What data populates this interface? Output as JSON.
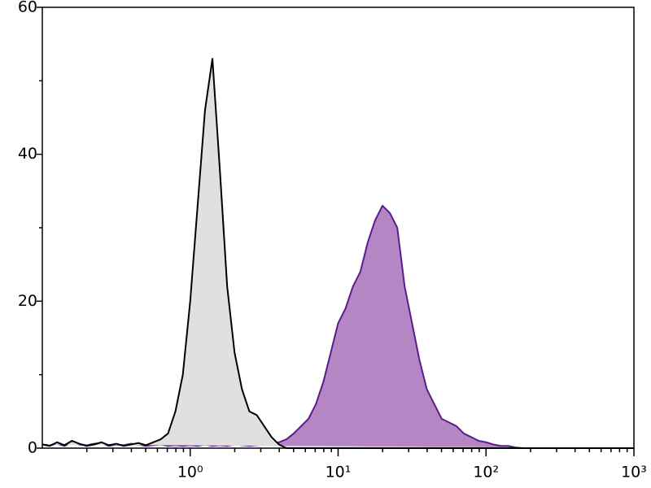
{
  "chart_data": {
    "type": "area",
    "x": [
      0.1,
      0.1122,
      0.1259,
      0.1413,
      0.1585,
      0.1778,
      0.1995,
      0.2239,
      0.2512,
      0.2818,
      0.3162,
      0.3548,
      0.3981,
      0.4467,
      0.5012,
      0.5623,
      0.631,
      0.7079,
      0.7943,
      0.8913,
      1,
      1.122,
      1.259,
      1.413,
      1.585,
      1.778,
      1.995,
      2.239,
      2.512,
      2.818,
      3.162,
      3.548,
      3.981,
      4.467,
      5.012,
      5.623,
      6.31,
      7.079,
      7.943,
      8.913,
      10,
      11.22,
      12.59,
      14.13,
      15.85,
      17.78,
      19.95,
      22.39,
      25.12,
      28.18,
      31.62,
      35.48,
      39.81,
      44.67,
      50.12,
      56.23,
      63.1,
      70.79,
      79.43,
      89.13,
      100,
      112.2,
      125.9,
      141.3,
      158.5,
      177.8,
      199.5,
      223.9,
      251.2,
      281.8,
      316.2,
      354.8,
      398.1,
      446.7,
      501.2,
      562.3,
      631,
      707.9,
      794.3,
      891.3,
      1000
    ],
    "series": [
      {
        "color": "#5b1c8c",
        "fill": "#b486c4",
        "values": [
          0.5,
          0.4,
          0.6,
          0.3,
          0.8,
          0.5,
          0.4,
          0.6,
          0.7,
          0.3,
          0.5,
          0.4,
          0.6,
          0.5,
          0.3,
          0.4,
          0.5,
          0.3,
          0.4,
          0.3,
          0.4,
          0.3,
          0.5,
          0.3,
          0.4,
          0.3,
          0.5,
          0.4,
          0.3,
          0.4,
          0.5,
          0.6,
          0.8,
          1.2,
          2,
          3,
          4,
          6,
          9,
          13,
          17,
          19,
          22,
          24,
          28,
          31,
          33,
          32,
          30,
          22,
          17,
          12,
          8,
          6,
          4,
          3.5,
          3,
          2,
          1.5,
          1,
          0.8,
          0.5,
          0.3,
          0.3,
          0.1,
          0,
          0,
          0,
          0,
          0,
          0,
          0,
          0,
          0,
          0,
          0,
          0,
          0,
          0,
          0,
          0
        ]
      },
      {
        "color": "#000000",
        "fill": "#e0e0e0",
        "values": [
          0.5,
          0.3,
          0.8,
          0.4,
          1,
          0.6,
          0.3,
          0.5,
          0.8,
          0.4,
          0.6,
          0.3,
          0.5,
          0.7,
          0.4,
          0.8,
          1.2,
          2,
          5,
          10,
          20,
          33,
          46,
          53,
          38,
          22,
          13,
          8,
          5,
          4.5,
          3,
          1.5,
          0.5,
          0,
          0,
          0,
          0,
          0,
          0,
          0,
          0,
          0,
          0,
          0,
          0,
          0,
          0,
          0,
          0,
          0,
          0,
          0,
          0,
          0,
          0,
          0,
          0,
          0,
          0,
          0,
          0,
          0,
          0,
          0,
          0,
          0,
          0,
          0,
          0,
          0,
          0,
          0,
          0,
          0,
          0,
          0,
          0,
          0,
          0,
          0,
          0
        ]
      }
    ],
    "xlog": true,
    "xlim": [
      0.1,
      1000
    ],
    "xticks": [
      {
        "value": 1,
        "label": "10⁰"
      },
      {
        "value": 10,
        "label": "10¹"
      },
      {
        "value": 100,
        "label": "10²"
      },
      {
        "value": 1000,
        "label": "10³"
      }
    ],
    "xminorticks": [
      0.2,
      0.3,
      0.4,
      0.5,
      0.6,
      0.7,
      0.8,
      0.9,
      2,
      3,
      4,
      5,
      6,
      7,
      8,
      9,
      20,
      30,
      40,
      50,
      60,
      70,
      80,
      90,
      200,
      300,
      400,
      500,
      600,
      700,
      800,
      900
    ],
    "ylim": [
      0,
      60
    ],
    "yticks": [
      0,
      20,
      40,
      60
    ],
    "yminorticks": [
      10,
      30,
      50
    ],
    "grid": false
  }
}
